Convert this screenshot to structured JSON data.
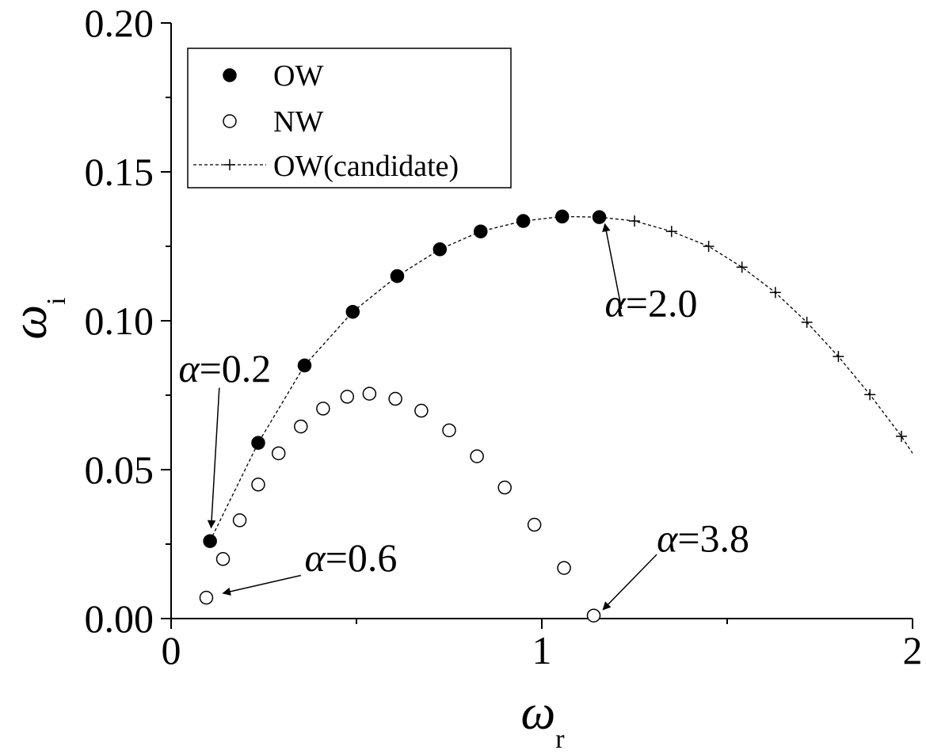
{
  "chart_data": {
    "type": "scatter",
    "xlabel": "ω",
    "xlabel_sub": "r",
    "ylabel": "ω",
    "ylabel_sub": "i",
    "xlim": [
      0,
      2
    ],
    "ylim": [
      0,
      0.2
    ],
    "x_ticks": [
      0,
      1,
      2
    ],
    "x_tick_labels": [
      "0",
      "1",
      "2"
    ],
    "y_ticks": [
      0,
      0.05,
      0.1,
      0.15,
      0.2
    ],
    "y_tick_labels": [
      "0.00",
      "0.05",
      "0.10",
      "0.15",
      "0.20"
    ],
    "grid": false,
    "legend_position": "top-left",
    "series": [
      {
        "name": "OW",
        "style": "filled-circle",
        "x": [
          0.105,
          0.235,
          0.36,
          0.49,
          0.61,
          0.725,
          0.835,
          0.95,
          1.055,
          1.155
        ],
        "y": [
          0.026,
          0.059,
          0.085,
          0.103,
          0.115,
          0.124,
          0.13,
          0.1335,
          0.135,
          0.1348
        ]
      },
      {
        "name": "NW",
        "style": "open-circle",
        "x": [
          0.095,
          0.14,
          0.185,
          0.235,
          0.29,
          0.35,
          0.41,
          0.475,
          0.535,
          0.605,
          0.675,
          0.75,
          0.825,
          0.9,
          0.98,
          1.06,
          1.14
        ],
        "y": [
          0.007,
          0.02,
          0.033,
          0.045,
          0.0555,
          0.0645,
          0.0705,
          0.0745,
          0.0755,
          0.0738,
          0.0698,
          0.0632,
          0.0545,
          0.044,
          0.0315,
          0.017,
          0.001
        ]
      },
      {
        "name": "OW(candidate)",
        "style": "dashed-line-plus",
        "x": [
          0.105,
          0.235,
          0.36,
          0.49,
          0.61,
          0.725,
          0.835,
          0.95,
          1.055,
          1.155,
          1.25,
          1.35,
          1.45,
          1.54,
          1.63,
          1.715,
          1.8,
          1.885,
          1.97,
          2.0
        ],
        "y": [
          0.026,
          0.059,
          0.085,
          0.103,
          0.115,
          0.124,
          0.13,
          0.1335,
          0.135,
          0.1348,
          0.1335,
          0.13,
          0.125,
          0.118,
          0.1095,
          0.0995,
          0.088,
          0.0752,
          0.0612,
          0.0555
        ],
        "markers_x": [
          1.25,
          1.35,
          1.45,
          1.54,
          1.63,
          1.715,
          1.8,
          1.885,
          1.97
        ],
        "markers_y": [
          0.1335,
          0.13,
          0.125,
          0.118,
          0.1095,
          0.0995,
          0.088,
          0.0752,
          0.0612
        ]
      }
    ],
    "annotations": [
      {
        "text_symbol": "α",
        "text_value": "=2.0",
        "label_x": 1.17,
        "label_y": 0.1015,
        "arrow_from": [
          1.215,
          0.104
        ],
        "arrow_to": [
          1.17,
          0.1325
        ]
      },
      {
        "text_symbol": "α",
        "text_value": "=0.2",
        "label_x": 0.02,
        "label_y": 0.0795,
        "arrow_from": [
          0.13,
          0.0775
        ],
        "arrow_to": [
          0.108,
          0.0305
        ]
      },
      {
        "text_symbol": "α",
        "text_value": "=0.6",
        "label_x": 0.36,
        "label_y": 0.016,
        "arrow_from": [
          0.35,
          0.0145
        ],
        "arrow_to": [
          0.14,
          0.0085
        ]
      },
      {
        "text_symbol": "α",
        "text_value": "=3.8",
        "label_x": 1.31,
        "label_y": 0.0225,
        "arrow_from": [
          1.31,
          0.0215
        ],
        "arrow_to": [
          1.165,
          0.003
        ]
      }
    ]
  }
}
